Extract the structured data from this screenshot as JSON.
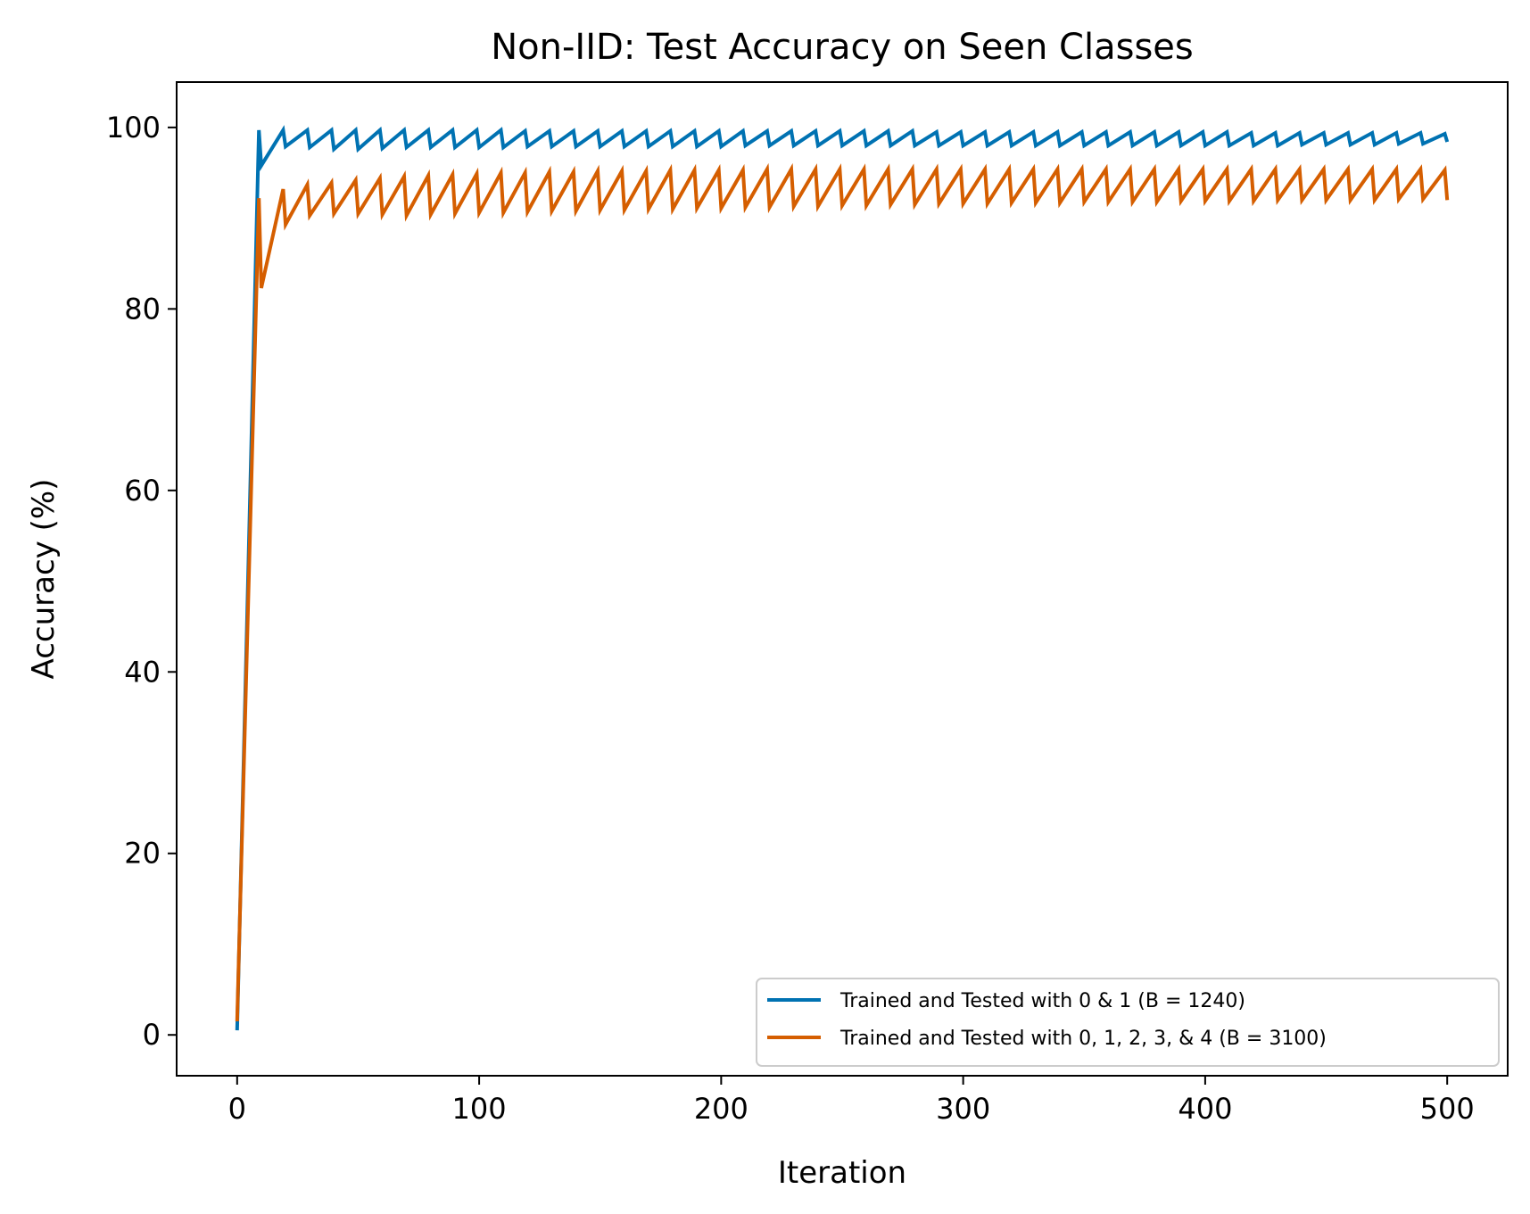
{
  "chart_data": {
    "type": "line",
    "title": "Non-IID: Test Accuracy on Seen Classes",
    "xlabel": "Iteration",
    "ylabel": "Accuracy (%)",
    "xlim": [
      -25,
      525
    ],
    "ylim": [
      -4.5,
      105
    ],
    "x_ticks": [
      0,
      100,
      200,
      300,
      400,
      500
    ],
    "y_ticks": [
      0,
      20,
      40,
      60,
      80,
      100
    ],
    "grid": false,
    "legend_position": "lower-right",
    "series": [
      {
        "name": "Trained and Tested with 0 & 1 (B = 1240)",
        "color": "#0072B2",
        "points": [
          [
            0,
            0.5
          ],
          [
            9,
            99.7
          ],
          [
            10,
            95.8
          ],
          [
            19,
            99.7
          ],
          [
            20,
            97.9
          ],
          [
            29,
            99.7
          ],
          [
            30,
            97.8
          ],
          [
            39,
            99.7
          ],
          [
            40,
            97.6
          ],
          [
            49,
            99.7
          ],
          [
            50,
            97.6
          ],
          [
            59,
            99.7
          ],
          [
            60,
            97.7
          ],
          [
            69,
            99.7
          ],
          [
            70,
            97.8
          ],
          [
            79,
            99.7
          ],
          [
            80,
            97.8
          ],
          [
            89,
            99.7
          ],
          [
            90,
            97.8
          ],
          [
            99,
            99.7
          ],
          [
            100,
            97.8
          ],
          [
            109,
            99.7
          ],
          [
            110,
            97.8
          ],
          [
            119,
            99.6
          ],
          [
            120,
            97.9
          ],
          [
            129,
            99.6
          ],
          [
            130,
            97.9
          ],
          [
            139,
            99.6
          ],
          [
            140,
            97.9
          ],
          [
            149,
            99.6
          ],
          [
            150,
            97.9
          ],
          [
            159,
            99.6
          ],
          [
            160,
            97.9
          ],
          [
            169,
            99.6
          ],
          [
            170,
            97.9
          ],
          [
            179,
            99.6
          ],
          [
            180,
            97.9
          ],
          [
            189,
            99.6
          ],
          [
            190,
            97.9
          ],
          [
            199,
            99.6
          ],
          [
            200,
            97.9
          ],
          [
            209,
            99.6
          ],
          [
            210,
            98.0
          ],
          [
            219,
            99.6
          ],
          [
            220,
            98.0
          ],
          [
            229,
            99.6
          ],
          [
            230,
            98.0
          ],
          [
            239,
            99.6
          ],
          [
            240,
            98.0
          ],
          [
            249,
            99.6
          ],
          [
            250,
            98.0
          ],
          [
            259,
            99.6
          ],
          [
            260,
            98.0
          ],
          [
            269,
            99.6
          ],
          [
            270,
            98.0
          ],
          [
            279,
            99.6
          ],
          [
            280,
            98.0
          ],
          [
            289,
            99.5
          ],
          [
            290,
            98.0
          ],
          [
            299,
            99.5
          ],
          [
            300,
            98.0
          ],
          [
            309,
            99.5
          ],
          [
            310,
            98.0
          ],
          [
            319,
            99.5
          ],
          [
            320,
            98.0
          ],
          [
            329,
            99.5
          ],
          [
            330,
            98.0
          ],
          [
            339,
            99.5
          ],
          [
            340,
            98.0
          ],
          [
            349,
            99.5
          ],
          [
            350,
            98.0
          ],
          [
            359,
            99.5
          ],
          [
            360,
            98.0
          ],
          [
            369,
            99.5
          ],
          [
            370,
            98.0
          ],
          [
            379,
            99.5
          ],
          [
            380,
            98.0
          ],
          [
            389,
            99.5
          ],
          [
            390,
            98.0
          ],
          [
            399,
            99.5
          ],
          [
            400,
            98.0
          ],
          [
            409,
            99.5
          ],
          [
            410,
            98.0
          ],
          [
            419,
            99.4
          ],
          [
            420,
            98.0
          ],
          [
            429,
            99.4
          ],
          [
            430,
            98.0
          ],
          [
            439,
            99.4
          ],
          [
            440,
            98.1
          ],
          [
            449,
            99.4
          ],
          [
            450,
            98.1
          ],
          [
            459,
            99.4
          ],
          [
            460,
            98.1
          ],
          [
            469,
            99.4
          ],
          [
            470,
            98.1
          ],
          [
            479,
            99.4
          ],
          [
            480,
            98.2
          ],
          [
            489,
            99.4
          ],
          [
            490,
            98.2
          ],
          [
            499,
            99.3
          ],
          [
            500,
            98.4
          ]
        ]
      },
      {
        "name": "Trained and Tested with 0, 1, 2, 3, & 4 (B = 3100)",
        "color": "#D55E00",
        "points": [
          [
            0,
            1.5
          ],
          [
            9,
            92.2
          ],
          [
            10,
            82.3
          ],
          [
            19,
            93.2
          ],
          [
            20,
            89.3
          ],
          [
            29,
            93.7
          ],
          [
            30,
            90.3
          ],
          [
            39,
            93.9
          ],
          [
            40,
            90.5
          ],
          [
            49,
            94.2
          ],
          [
            50,
            90.5
          ],
          [
            59,
            94.4
          ],
          [
            60,
            90.4
          ],
          [
            69,
            94.6
          ],
          [
            70,
            90.3
          ],
          [
            79,
            94.7
          ],
          [
            80,
            90.4
          ],
          [
            89,
            94.8
          ],
          [
            90,
            90.5
          ],
          [
            99,
            94.9
          ],
          [
            100,
            90.6
          ],
          [
            109,
            95.0
          ],
          [
            110,
            90.6
          ],
          [
            119,
            95.0
          ],
          [
            120,
            90.7
          ],
          [
            129,
            95.1
          ],
          [
            130,
            90.8
          ],
          [
            139,
            95.1
          ],
          [
            140,
            90.8
          ],
          [
            149,
            95.2
          ],
          [
            150,
            90.9
          ],
          [
            159,
            95.2
          ],
          [
            160,
            90.9
          ],
          [
            169,
            95.2
          ],
          [
            170,
            91.0
          ],
          [
            179,
            95.3
          ],
          [
            180,
            91.0
          ],
          [
            189,
            95.3
          ],
          [
            190,
            91.1
          ],
          [
            199,
            95.3
          ],
          [
            200,
            91.1
          ],
          [
            209,
            95.3
          ],
          [
            210,
            91.2
          ],
          [
            219,
            95.4
          ],
          [
            220,
            91.2
          ],
          [
            229,
            95.4
          ],
          [
            230,
            91.3
          ],
          [
            239,
            95.4
          ],
          [
            240,
            91.3
          ],
          [
            249,
            95.4
          ],
          [
            250,
            91.4
          ],
          [
            259,
            95.4
          ],
          [
            260,
            91.4
          ],
          [
            269,
            95.4
          ],
          [
            270,
            91.5
          ],
          [
            279,
            95.4
          ],
          [
            280,
            91.5
          ],
          [
            289,
            95.4
          ],
          [
            290,
            91.6
          ],
          [
            299,
            95.4
          ],
          [
            300,
            91.6
          ],
          [
            309,
            95.4
          ],
          [
            310,
            91.6
          ],
          [
            319,
            95.4
          ],
          [
            320,
            91.7
          ],
          [
            329,
            95.4
          ],
          [
            330,
            91.7
          ],
          [
            339,
            95.4
          ],
          [
            340,
            91.7
          ],
          [
            349,
            95.4
          ],
          [
            350,
            91.8
          ],
          [
            359,
            95.4
          ],
          [
            360,
            91.8
          ],
          [
            369,
            95.4
          ],
          [
            370,
            91.8
          ],
          [
            379,
            95.4
          ],
          [
            380,
            91.8
          ],
          [
            389,
            95.4
          ],
          [
            390,
            91.9
          ],
          [
            399,
            95.4
          ],
          [
            400,
            91.9
          ],
          [
            409,
            95.4
          ],
          [
            410,
            91.9
          ],
          [
            419,
            95.4
          ],
          [
            420,
            91.9
          ],
          [
            429,
            95.4
          ],
          [
            430,
            92.0
          ],
          [
            439,
            95.4
          ],
          [
            440,
            92.0
          ],
          [
            449,
            95.4
          ],
          [
            450,
            92.0
          ],
          [
            459,
            95.4
          ],
          [
            460,
            92.0
          ],
          [
            469,
            95.4
          ],
          [
            470,
            92.0
          ],
          [
            479,
            95.4
          ],
          [
            480,
            92.1
          ],
          [
            489,
            95.4
          ],
          [
            490,
            92.1
          ],
          [
            499,
            95.3
          ],
          [
            500,
            92.0
          ]
        ]
      }
    ]
  }
}
